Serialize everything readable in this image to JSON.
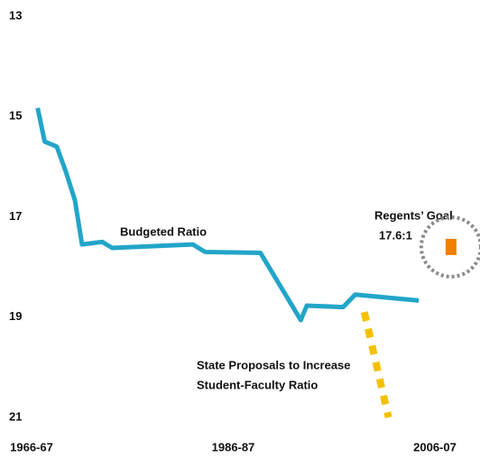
{
  "chart_data": {
    "type": "line",
    "xlim": [
      1966,
      2010
    ],
    "ylim": [
      13,
      21
    ],
    "y_inverted": true,
    "grid": false,
    "xticks": [
      {
        "value": 1966,
        "label": "1966-67"
      },
      {
        "value": 1986,
        "label": "1986-87"
      },
      {
        "value": 2006,
        "label": "2006-07"
      }
    ],
    "yticks": [
      13,
      15,
      17,
      19,
      21
    ],
    "series": [
      {
        "name": "Budgeted Ratio",
        "color": "#22a5c9",
        "style": "solid",
        "x": [
          1966.6,
          1967.3,
          1968.5,
          1969.4,
          1970.3,
          1971,
          1973,
          1974,
          1982,
          1983.2,
          1988.7,
          1992.7,
          1993.3,
          1996.9,
          1998.1,
          2004.4
        ],
        "values": [
          14.83,
          15.5,
          15.6,
          16.1,
          16.67,
          17.55,
          17.5,
          17.62,
          17.55,
          17.7,
          17.72,
          19.06,
          18.77,
          18.8,
          18.55,
          18.67
        ]
      },
      {
        "color": "#f4c000",
        "style": "dashed",
        "x": [
          1999,
          2001.4
        ],
        "values": [
          18.9,
          21
        ]
      },
      {
        "name": "Regents’ Goal",
        "color": "#f07f00",
        "style": "marker",
        "x": [
          2007.6
        ],
        "values": [
          17.6
        ],
        "value_labels": [
          "17.6:1"
        ]
      }
    ],
    "annotations": [
      "State Proposals to Increase",
      "Student-Faculty Ratio"
    ]
  }
}
